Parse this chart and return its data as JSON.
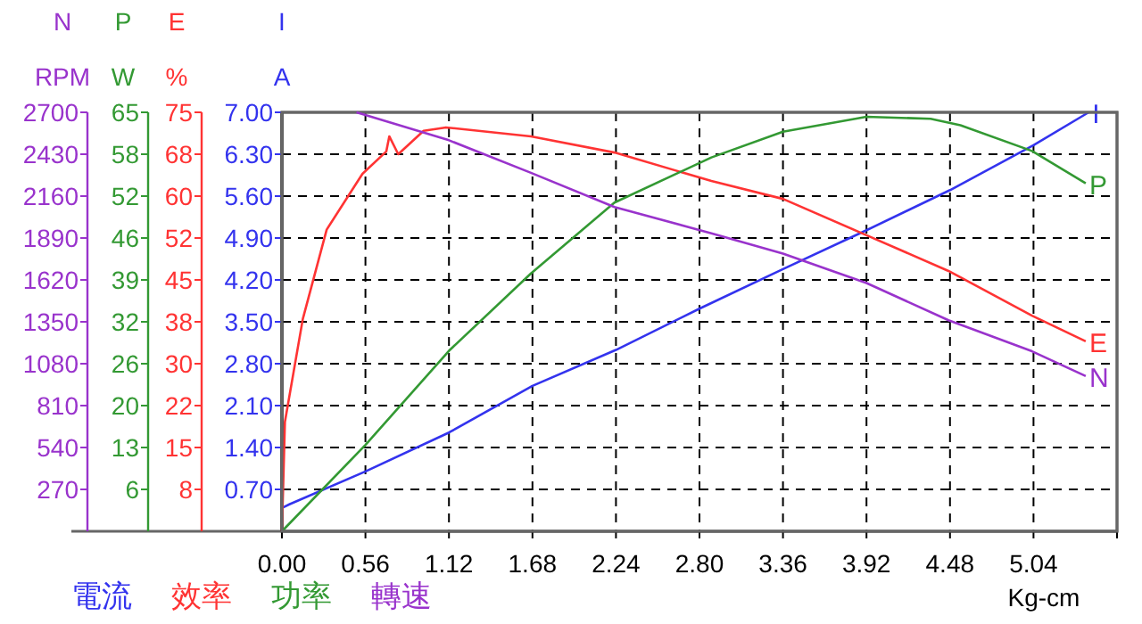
{
  "chart_data": [
    {
      "type": "line",
      "xlabel": "Kg-cm",
      "ylabel": "A",
      "y2label": "%",
      "y3label": "W",
      "xlim": [
        0,
        5.6
      ],
      "xticks": [
        {
          "value": 0,
          "label": "0.00"
        },
        {
          "value": 0.56,
          "label": "0.56"
        },
        {
          "value": 1.12,
          "label": "1.12"
        },
        {
          "value": 1.68,
          "label": "1.68"
        },
        {
          "value": 2.24,
          "label": "2.24"
        },
        {
          "value": 2.8,
          "label": "2.80"
        },
        {
          "value": 3.36,
          "label": "3.36"
        },
        {
          "value": 3.92,
          "label": "3.92"
        },
        {
          "value": 4.48,
          "label": "4.48"
        },
        {
          "value": 5.04,
          "label": "5.04"
        },
        {
          "value": 5.6,
          "label": null
        }
      ],
      "ylim": [
        0,
        7
      ],
      "yticks": [
        {
          "value": 0.7,
          "label": "0.70"
        },
        {
          "value": 1.4,
          "label": "1.40"
        },
        {
          "value": 2.1,
          "label": "2.10"
        },
        {
          "value": 2.8,
          "label": "2.80"
        },
        {
          "value": 3.5,
          "label": "3.50"
        },
        {
          "value": 4.2,
          "label": "4.20"
        },
        {
          "value": 4.9,
          "label": "4.90"
        },
        {
          "value": 5.6,
          "label": "5.60"
        },
        {
          "value": 6.3,
          "label": "6.30"
        },
        {
          "value": 7,
          "label": "7.00"
        }
      ],
      "y2lim": [
        0,
        75
      ],
      "y2ticks": [
        {
          "value": 7.5,
          "label": "8"
        },
        {
          "value": 15,
          "label": "15"
        },
        {
          "value": 22.5,
          "label": "22"
        },
        {
          "value": 30,
          "label": "30"
        },
        {
          "value": 37.5,
          "label": "38"
        },
        {
          "value": 45,
          "label": "45"
        },
        {
          "value": 52.5,
          "label": "52"
        },
        {
          "value": 60,
          "label": "60"
        },
        {
          "value": 67.5,
          "label": "68"
        },
        {
          "value": 75,
          "label": "75"
        }
      ],
      "y3lim": [
        0,
        65
      ],
      "y3ticks": [
        {
          "value": 6.5,
          "label": "6"
        },
        {
          "value": 13,
          "label": "13"
        },
        {
          "value": 19.5,
          "label": "20"
        },
        {
          "value": 26,
          "label": "26"
        },
        {
          "value": 32.5,
          "label": "32"
        },
        {
          "value": 39,
          "label": "39"
        },
        {
          "value": 45.5,
          "label": "46"
        },
        {
          "value": 52,
          "label": "52"
        },
        {
          "value": 58.5,
          "label": "58"
        },
        {
          "value": 65,
          "label": "65"
        }
      ],
      "grid": true,
      "line_style": "solid",
      "annotations": [
        "電流",
        "效率",
        "功率"
      ],
      "series": [
        {
          "name": "I",
          "color": "#3333ee",
          "x": [
            0,
            0.05,
            0.56,
            1.12,
            1.68,
            2.24,
            2.8,
            3.36,
            3.92,
            4.48,
            5.04,
            5.41
          ],
          "values": [
            0.39,
            0.45,
            1.0,
            1.65,
            2.43,
            3.03,
            3.72,
            4.38,
            5.03,
            5.7,
            6.45,
            7.0
          ]
        },
        {
          "name": "E",
          "color": "#ff3333",
          "axis": "y2",
          "x": [
            0,
            0.02,
            0.14,
            0.3,
            0.54,
            0.7,
            0.72,
            0.78,
            0.95,
            1.1,
            1.67,
            2.23,
            2.88,
            3.36,
            3.92,
            4.47,
            5.03,
            5.39
          ],
          "values": [
            0,
            19.6,
            38,
            54,
            64,
            68,
            70.7,
            67.5,
            71.7,
            72.3,
            70.7,
            67.8,
            62.7,
            59.5,
            53,
            46.6,
            38.6,
            34
          ]
        },
        {
          "name": "P",
          "color": "#339933",
          "axis": "y3",
          "x": [
            0,
            0.56,
            1.12,
            1.67,
            2.23,
            2.88,
            3.36,
            3.92,
            4.35,
            4.55,
            5.03,
            5.39
          ],
          "values": [
            0,
            13.4,
            28,
            40,
            51,
            58,
            62,
            64.3,
            64,
            63,
            59,
            54
          ]
        }
      ]
    },
    {
      "type": "line",
      "ylabel": "RPM",
      "xlim": [
        0,
        5.6
      ],
      "ylim": [
        0,
        2700
      ],
      "yticks": [
        270,
        540,
        810,
        1080,
        1350,
        1620,
        1890,
        2160,
        2430,
        2700
      ],
      "tick_labels": "y",
      "line_style": "solid",
      "annotations": [
        "轉速"
      ],
      "series": [
        {
          "name": "N",
          "color": "#9933cc",
          "x": [
            0.5,
            1.12,
            1.67,
            2.23,
            2.88,
            3.36,
            3.92,
            4.47,
            5.03,
            5.39
          ],
          "values": [
            2700,
            2520,
            2310,
            2090,
            1920,
            1790,
            1600,
            1360,
            1160,
            1000
          ]
        }
      ]
    }
  ]
}
